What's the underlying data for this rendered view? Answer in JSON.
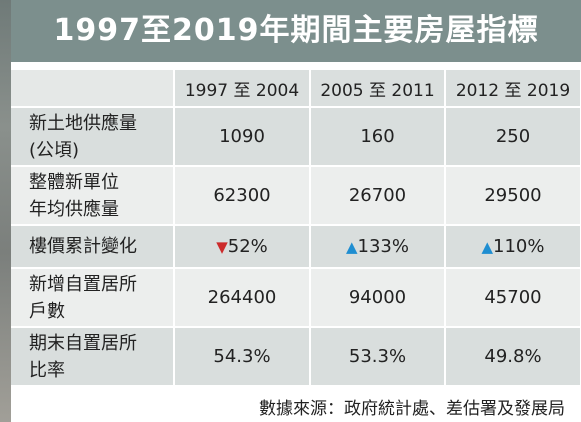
{
  "title": "1997至2019年期間主要房屋指標",
  "columns": [
    "1997 至 2004",
    "2005 至 2011",
    "2012 至 2019"
  ],
  "rows": [
    {
      "label_lines": [
        "新土地供應量",
        "(公頃)"
      ],
      "values": [
        "1090",
        "160",
        "250"
      ]
    },
    {
      "label_lines": [
        "整體新單位",
        "年均供應量"
      ],
      "values": [
        "62300",
        "26700",
        "29500"
      ]
    },
    {
      "label_lines": [
        "樓價累計變化"
      ],
      "values": [
        "52%",
        "133%",
        "110%"
      ],
      "trend_icons": [
        "down-triangle",
        "up-triangle",
        "up-triangle"
      ]
    },
    {
      "label_lines": [
        "新增自置居所",
        "戶數"
      ],
      "values": [
        "264400",
        "94000",
        "45700"
      ]
    },
    {
      "label_lines": [
        "期末自置居所",
        "比率"
      ],
      "values": [
        "54.3%",
        "53.3%",
        "49.8%"
      ]
    }
  ],
  "source": "數據來源：政府統計處、差估署及發展局",
  "colors": {
    "banner": "#7c8f8d",
    "row_dark": "#d9dedd",
    "row_light": "#eceeed",
    "decrease": "#cc2b2b",
    "increase": "#1f8ed1"
  }
}
